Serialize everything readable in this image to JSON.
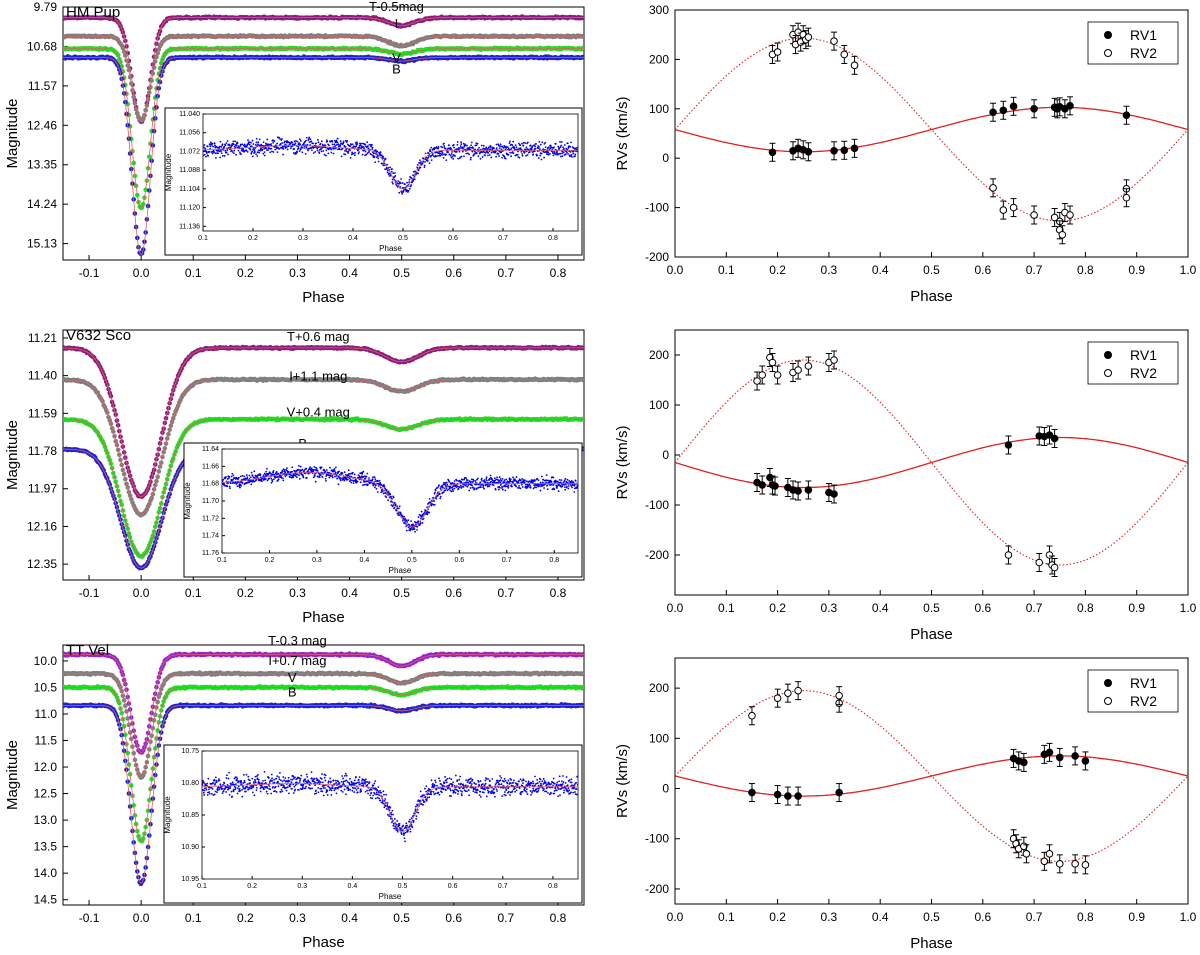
{
  "figure_title": "",
  "chart_data": [
    {
      "id": "lc1",
      "type": "scatter",
      "title": "HM Pup",
      "xlabel": "Phase",
      "ylabel": "Magnitude",
      "xlim": [
        -0.15,
        0.85
      ],
      "ylim": [
        9.79,
        15.5
      ],
      "y_inverted": true,
      "xticks": [
        -0.1,
        0.0,
        0.1,
        0.2,
        0.3,
        0.4,
        0.5,
        0.6,
        0.7,
        0.8
      ],
      "xtick_labels": [
        "-0.1",
        "0.0",
        "0.1",
        "0.2",
        "0.3",
        "0.4",
        "0.5",
        "0.6",
        "0.7",
        "0.8"
      ],
      "yticks": [
        9.79,
        10.68,
        11.57,
        12.46,
        13.35,
        14.24,
        15.13
      ],
      "ytick_labels": [
        "9.79",
        "10.68",
        "11.57",
        "12.46",
        "13.35",
        "14.24",
        "15.13"
      ],
      "pw": 0.025,
      "series": [
        {
          "name": "T-0.5mag",
          "color": "#8b1c7d",
          "base": 10.03,
          "primary_depth": 2.35,
          "secondary_depth": 0.18,
          "sw": 0.035,
          "label_phase": 0.49,
          "label_mag": 9.95,
          "label_side": "above"
        },
        {
          "name": "I",
          "color": "#7f7f7f",
          "base": 10.45,
          "primary_depth": 1.9,
          "secondary_depth": 0.22,
          "sw": 0.035,
          "label_phase": 0.49,
          "label_mag": 10.33,
          "label_side": "above"
        },
        {
          "name": "V",
          "color": "#22dd22",
          "base": 10.73,
          "primary_depth": 3.6,
          "secondary_depth": 0.12,
          "sw": 0.035,
          "label_phase": 0.49,
          "label_mag": 10.82,
          "label_side": "below"
        },
        {
          "name": "B",
          "color": "#2222cc",
          "base": 10.93,
          "primary_depth": 4.45,
          "secondary_depth": 0.08,
          "sw": 0.035,
          "label_phase": 0.49,
          "label_mag": 11.06,
          "label_side": "below"
        }
      ],
      "inset": {
        "xlabel": "Phase",
        "ylabel": "Magnitude",
        "color": "#0000ee",
        "xlim": [
          0.1,
          0.85
        ],
        "ylim": [
          11.04,
          11.14
        ],
        "y_inverted": true,
        "xticks": [
          0.1,
          0.2,
          0.3,
          0.4,
          0.5,
          0.6,
          0.7,
          0.8
        ],
        "xtick_labels": [
          "0.1",
          "0.2",
          "0.3",
          "0.4",
          "0.5",
          "0.6",
          "0.7",
          "0.8"
        ],
        "yticks": [
          11.04,
          11.056,
          11.072,
          11.088,
          11.104,
          11.12,
          11.136
        ],
        "ytick_labels": [
          "11.040",
          "11.056",
          "11.072",
          "11.088",
          "11.104",
          "11.120",
          "11.136"
        ],
        "base": 11.071,
        "depth": 0.033,
        "sw": 0.035,
        "hump_left": 0.004,
        "hump_right": 0.0,
        "scatter": 0.008
      }
    },
    {
      "id": "rv1",
      "type": "scatter",
      "xlabel": "Phase",
      "ylabel": "RVs (km/s)",
      "xlim": [
        0.0,
        1.0
      ],
      "ylim": [
        -200,
        300
      ],
      "xticks": [
        0.0,
        0.1,
        0.2,
        0.3,
        0.4,
        0.5,
        0.6,
        0.7,
        0.8,
        0.9,
        1.0
      ],
      "xtick_labels": [
        "0.0",
        "0.1",
        "0.2",
        "0.3",
        "0.4",
        "0.5",
        "0.6",
        "0.7",
        "0.8",
        "0.9",
        "1.0"
      ],
      "yticks": [
        -200,
        -100,
        0,
        100,
        200,
        300
      ],
      "ytick_labels": [
        "-200",
        "-100",
        "0",
        "100",
        "200",
        "300"
      ],
      "legend": [
        "RV1",
        "RV2"
      ],
      "model": {
        "gamma": 58,
        "K1": 45,
        "K2": 185
      },
      "series": [
        {
          "name": "RV1",
          "marker": "filled",
          "points": [
            [
              0.19,
              12
            ],
            [
              0.23,
              15
            ],
            [
              0.24,
              20
            ],
            [
              0.25,
              17
            ],
            [
              0.26,
              13
            ],
            [
              0.31,
              15
            ],
            [
              0.33,
              16
            ],
            [
              0.35,
              20
            ],
            [
              0.62,
              93
            ],
            [
              0.64,
              97
            ],
            [
              0.66,
              105
            ],
            [
              0.7,
              100
            ],
            [
              0.74,
              103
            ],
            [
              0.745,
              100
            ],
            [
              0.75,
              104
            ],
            [
              0.76,
              100
            ],
            [
              0.77,
              106
            ],
            [
              0.88,
              87
            ]
          ]
        },
        {
          "name": "RV2",
          "marker": "open",
          "points": [
            [
              0.19,
              210
            ],
            [
              0.2,
              215
            ],
            [
              0.23,
              250
            ],
            [
              0.235,
              230
            ],
            [
              0.24,
              255
            ],
            [
              0.245,
              235
            ],
            [
              0.25,
              250
            ],
            [
              0.255,
              240
            ],
            [
              0.26,
              245
            ],
            [
              0.31,
              237
            ],
            [
              0.33,
              210
            ],
            [
              0.35,
              188
            ],
            [
              0.62,
              -60
            ],
            [
              0.64,
              -105
            ],
            [
              0.66,
              -100
            ],
            [
              0.7,
              -115
            ],
            [
              0.74,
              -120
            ],
            [
              0.75,
              -128
            ],
            [
              0.76,
              -110
            ],
            [
              0.77,
              -115
            ],
            [
              0.88,
              -62
            ],
            [
              0.88,
              -80
            ],
            [
              0.75,
              -145
            ],
            [
              0.755,
              -155
            ]
          ]
        }
      ]
    },
    {
      "id": "lc2",
      "type": "scatter",
      "title": "V632 Sco",
      "xlabel": "Phase",
      "ylabel": "Magnitude",
      "xlim": [
        -0.15,
        0.85
      ],
      "ylim": [
        11.17,
        12.43
      ],
      "y_inverted": true,
      "xticks": [
        -0.1,
        0.0,
        0.1,
        0.2,
        0.3,
        0.4,
        0.5,
        0.6,
        0.7,
        0.8
      ],
      "xtick_labels": [
        "-0.1",
        "0.0",
        "0.1",
        "0.2",
        "0.3",
        "0.4",
        "0.5",
        "0.6",
        "0.7",
        "0.8"
      ],
      "yticks": [
        11.21,
        11.4,
        11.59,
        11.78,
        11.97,
        12.16,
        12.35
      ],
      "ytick_labels": [
        "11.21",
        "11.40",
        "11.59",
        "11.78",
        "11.97",
        "12.16",
        "12.35"
      ],
      "pw": 0.055,
      "series": [
        {
          "name": "T+0.6 mag",
          "color": "#8b1c7d",
          "base": 11.26,
          "primary_depth": 0.75,
          "secondary_depth": 0.07,
          "sw": 0.045,
          "label_phase": 0.34,
          "label_mag": 11.24,
          "label_side": "above"
        },
        {
          "name": "I+1.1 mag",
          "color": "#7f7f7f",
          "base": 11.42,
          "primary_depth": 0.68,
          "secondary_depth": 0.06,
          "sw": 0.045,
          "label_phase": 0.34,
          "label_mag": 11.44,
          "label_side": "above"
        },
        {
          "name": "V+0.4 mag",
          "color": "#22dd22",
          "base": 11.62,
          "primary_depth": 0.69,
          "secondary_depth": 0.05,
          "sw": 0.045,
          "label_phase": 0.34,
          "label_mag": 11.62,
          "label_side": "above"
        },
        {
          "name": "B",
          "color": "#2222cc",
          "base": 11.77,
          "primary_depth": 0.6,
          "secondary_depth": 0.05,
          "sw": 0.045,
          "label_phase": 0.31,
          "label_mag": 11.78,
          "label_side": "above"
        }
      ],
      "inset": {
        "xlabel": "Phase",
        "ylabel": "Magnitude",
        "color": "#0000ee",
        "xlim": [
          0.1,
          0.85
        ],
        "ylim": [
          11.64,
          11.76
        ],
        "y_inverted": true,
        "xticks": [
          0.1,
          0.2,
          0.3,
          0.4,
          0.5,
          0.6,
          0.7,
          0.8
        ],
        "xtick_labels": [
          "0.1",
          "0.2",
          "0.3",
          "0.4",
          "0.5",
          "0.6",
          "0.7",
          "0.8"
        ],
        "yticks": [
          11.64,
          11.66,
          11.68,
          11.7,
          11.72,
          11.74,
          11.76
        ],
        "ytick_labels": [
          "11.64",
          "11.66",
          "11.68",
          "11.70",
          "11.72",
          "11.74",
          "11.76"
        ],
        "base": 11.68,
        "depth": 0.05,
        "sw": 0.045,
        "hump_left": 0.013,
        "hump_right": 0.0,
        "scatter": 0.009
      }
    },
    {
      "id": "rv2",
      "type": "scatter",
      "xlabel": "Phase",
      "ylabel": "RVs (km/s)",
      "xlim": [
        0.0,
        1.0
      ],
      "ylim": [
        -280,
        250
      ],
      "xticks": [
        0.0,
        0.1,
        0.2,
        0.3,
        0.4,
        0.5,
        0.6,
        0.7,
        0.8,
        0.9,
        1.0
      ],
      "xtick_labels": [
        "0.0",
        "0.1",
        "0.2",
        "0.3",
        "0.4",
        "0.5",
        "0.6",
        "0.7",
        "0.8",
        "0.9",
        "1.0"
      ],
      "yticks": [
        -200,
        -100,
        0,
        100,
        200
      ],
      "ytick_labels": [
        "-200",
        "-100",
        "0",
        "100",
        "200"
      ],
      "legend": [
        "RV1",
        "RV2"
      ],
      "model": {
        "gamma": -15,
        "K1": 50,
        "K2": 205
      },
      "series": [
        {
          "name": "RV1",
          "marker": "filled",
          "points": [
            [
              0.16,
              -55
            ],
            [
              0.17,
              -60
            ],
            [
              0.185,
              -45
            ],
            [
              0.19,
              -60
            ],
            [
              0.195,
              -62
            ],
            [
              0.22,
              -65
            ],
            [
              0.23,
              -70
            ],
            [
              0.24,
              -72
            ],
            [
              0.26,
              -70
            ],
            [
              0.3,
              -75
            ],
            [
              0.31,
              -78
            ],
            [
              0.65,
              20
            ],
            [
              0.71,
              38
            ],
            [
              0.72,
              37
            ],
            [
              0.73,
              40
            ],
            [
              0.74,
              33
            ]
          ]
        },
        {
          "name": "RV2",
          "marker": "open",
          "points": [
            [
              0.16,
              148
            ],
            [
              0.17,
              160
            ],
            [
              0.185,
              195
            ],
            [
              0.19,
              185
            ],
            [
              0.2,
              160
            ],
            [
              0.23,
              165
            ],
            [
              0.24,
              170
            ],
            [
              0.26,
              178
            ],
            [
              0.3,
              185
            ],
            [
              0.31,
              190
            ],
            [
              0.65,
              -200
            ],
            [
              0.71,
              -215
            ],
            [
              0.73,
              -200
            ],
            [
              0.735,
              -220
            ],
            [
              0.74,
              -225
            ]
          ]
        }
      ]
    },
    {
      "id": "lc3",
      "type": "scatter",
      "title": "TT Vel",
      "xlabel": "Phase",
      "ylabel": "Magnitude",
      "xlim": [
        -0.15,
        0.85
      ],
      "ylim": [
        9.7,
        14.6
      ],
      "y_inverted": true,
      "xticks": [
        -0.1,
        0.0,
        0.1,
        0.2,
        0.3,
        0.4,
        0.5,
        0.6,
        0.7,
        0.8
      ],
      "xtick_labels": [
        "-0.1",
        "0.0",
        "0.1",
        "0.2",
        "0.3",
        "0.4",
        "0.5",
        "0.6",
        "0.7",
        "0.8"
      ],
      "yticks": [
        10.0,
        10.5,
        11.0,
        11.5,
        12.0,
        12.5,
        13.0,
        13.5,
        14.0,
        14.5
      ],
      "ytick_labels": [
        "10.0",
        "10.5",
        "11.0",
        "11.5",
        "12.0",
        "12.5",
        "13.0",
        "13.5",
        "14.0",
        "14.5"
      ],
      "pw": 0.028,
      "series": [
        {
          "name": "T-0.3 mag",
          "color": "#9a22cc",
          "base": 9.88,
          "primary_depth": 1.85,
          "secondary_depth": 0.22,
          "sw": 0.035,
          "label_phase": 0.3,
          "label_mag": 9.76,
          "label_side": "above"
        },
        {
          "name": "I+0.7 mag",
          "color": "#7f7f7f",
          "base": 10.24,
          "primary_depth": 1.95,
          "secondary_depth": 0.18,
          "sw": 0.035,
          "label_phase": 0.3,
          "label_mag": 10.13,
          "label_side": "above"
        },
        {
          "name": "V",
          "color": "#22dd22",
          "base": 10.5,
          "primary_depth": 2.9,
          "secondary_depth": 0.14,
          "sw": 0.035,
          "label_phase": 0.29,
          "label_mag": 10.45,
          "label_side": "above"
        },
        {
          "name": "B",
          "color": "#2222cc",
          "base": 10.84,
          "primary_depth": 3.35,
          "secondary_depth": 0.1,
          "sw": 0.035,
          "label_phase": 0.29,
          "label_mag": 10.73,
          "label_side": "above"
        }
      ],
      "inset": {
        "xlabel": "Phase",
        "ylabel": "Magnitude",
        "color": "#0000ee",
        "xlim": [
          0.1,
          0.85
        ],
        "ylim": [
          10.75,
          10.95
        ],
        "y_inverted": true,
        "xticks": [
          0.1,
          0.2,
          0.3,
          0.4,
          0.5,
          0.6,
          0.7,
          0.8
        ],
        "xtick_labels": [
          "0.1",
          "0.2",
          "0.3",
          "0.4",
          "0.5",
          "0.6",
          "0.7",
          "0.8"
        ],
        "yticks": [
          10.75,
          10.8,
          10.85,
          10.9,
          10.95
        ],
        "ytick_labels": [
          "10.75",
          "10.80",
          "10.85",
          "10.90",
          "10.95"
        ],
        "base": 10.806,
        "depth": 0.07,
        "sw": 0.035,
        "hump_left": 0.005,
        "hump_right": 0.0,
        "scatter": 0.018
      }
    },
    {
      "id": "rv3",
      "type": "scatter",
      "xlabel": "Phase",
      "ylabel": "RVs (km/s)",
      "xlim": [
        0.0,
        1.0
      ],
      "ylim": [
        -230,
        260
      ],
      "xticks": [
        0.0,
        0.1,
        0.2,
        0.3,
        0.4,
        0.5,
        0.6,
        0.7,
        0.8,
        0.9,
        1.0
      ],
      "xtick_labels": [
        "0.0",
        "0.1",
        "0.2",
        "0.3",
        "0.4",
        "0.5",
        "0.6",
        "0.7",
        "0.8",
        "0.9",
        "1.0"
      ],
      "yticks": [
        -200,
        -100,
        0,
        100,
        200
      ],
      "ytick_labels": [
        "-200",
        "-100",
        "0",
        "100",
        "200"
      ],
      "legend": [
        "RV1",
        "RV2"
      ],
      "model": {
        "gamma": 25,
        "K1": 40,
        "K2": 170
      },
      "series": [
        {
          "name": "RV1",
          "marker": "filled",
          "points": [
            [
              0.15,
              -8
            ],
            [
              0.2,
              -12
            ],
            [
              0.22,
              -15
            ],
            [
              0.24,
              -15
            ],
            [
              0.32,
              -8
            ],
            [
              0.66,
              60
            ],
            [
              0.67,
              55
            ],
            [
              0.68,
              52
            ],
            [
              0.72,
              68
            ],
            [
              0.73,
              72
            ],
            [
              0.75,
              62
            ],
            [
              0.78,
              65
            ],
            [
              0.8,
              55
            ]
          ]
        },
        {
          "name": "RV2",
          "marker": "open",
          "points": [
            [
              0.15,
              145
            ],
            [
              0.2,
              180
            ],
            [
              0.22,
              190
            ],
            [
              0.24,
              195
            ],
            [
              0.32,
              170
            ],
            [
              0.32,
              185
            ],
            [
              0.66,
              -100
            ],
            [
              0.665,
              -110
            ],
            [
              0.67,
              -120
            ],
            [
              0.68,
              -115
            ],
            [
              0.685,
              -130
            ],
            [
              0.72,
              -145
            ],
            [
              0.73,
              -130
            ],
            [
              0.75,
              -150
            ],
            [
              0.78,
              -150
            ],
            [
              0.8,
              -152
            ]
          ]
        }
      ]
    }
  ]
}
